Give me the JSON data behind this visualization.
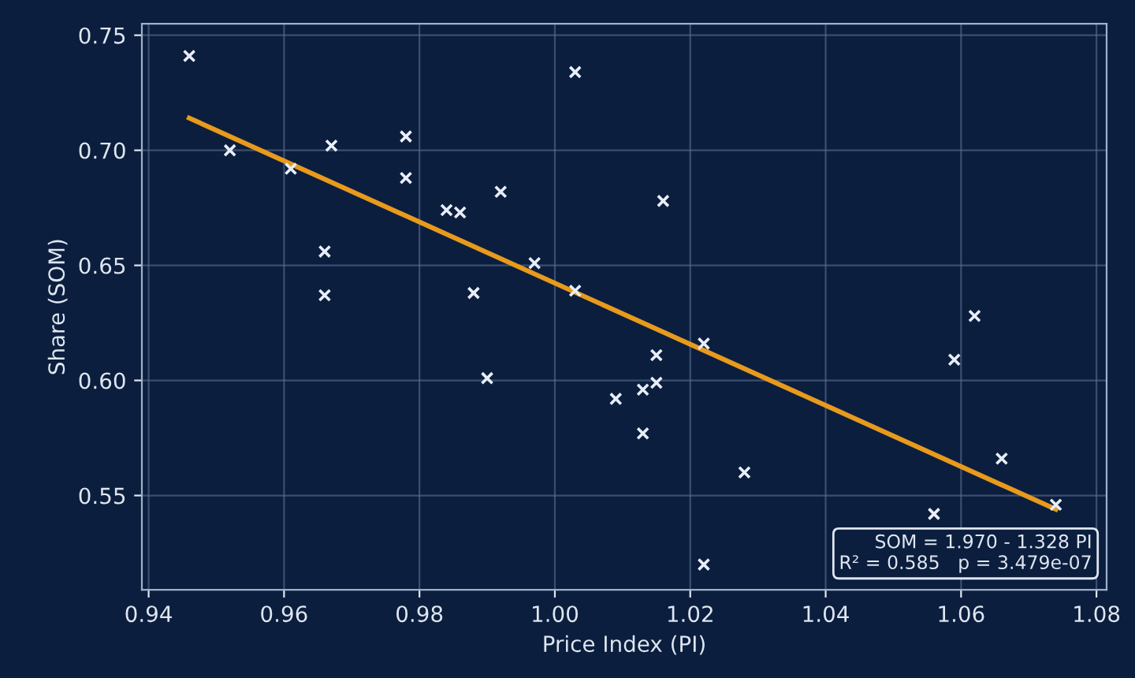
{
  "chart_data": {
    "type": "scatter",
    "xlabel": "Price Index (PI)",
    "ylabel": "Share (SOM)",
    "xlim": [
      0.939,
      1.0815
    ],
    "ylim": [
      0.509,
      0.755
    ],
    "xticks": [
      {
        "value": 0.94,
        "label": "0.94"
      },
      {
        "value": 0.96,
        "label": "0.96"
      },
      {
        "value": 0.98,
        "label": "0.98"
      },
      {
        "value": 1.0,
        "label": "1.00"
      },
      {
        "value": 1.02,
        "label": "1.02"
      },
      {
        "value": 1.04,
        "label": "1.04"
      },
      {
        "value": 1.06,
        "label": "1.06"
      },
      {
        "value": 1.08,
        "label": "1.08"
      }
    ],
    "yticks": [
      {
        "value": 0.55,
        "label": "0.55"
      },
      {
        "value": 0.6,
        "label": "0.60"
      },
      {
        "value": 0.65,
        "label": "0.65"
      },
      {
        "value": 0.7,
        "label": "0.70"
      },
      {
        "value": 0.75,
        "label": "0.75"
      }
    ],
    "grid": true,
    "series": [
      {
        "marker": "cross",
        "color": "#e8eef8",
        "x": [
          0.946,
          0.952,
          0.961,
          0.967,
          0.966,
          0.966,
          0.978,
          0.978,
          0.984,
          0.986,
          0.992,
          0.988,
          0.99,
          0.997,
          1.003,
          1.003,
          1.016,
          1.009,
          1.015,
          1.013,
          1.015,
          1.013,
          1.022,
          1.022,
          1.028,
          1.059,
          1.062,
          1.066,
          1.074,
          1.056
        ],
        "values": [
          0.741,
          0.7,
          0.692,
          0.702,
          0.656,
          0.637,
          0.706,
          0.688,
          0.674,
          0.673,
          0.682,
          0.638,
          0.601,
          0.651,
          0.734,
          0.639,
          0.678,
          0.592,
          0.611,
          0.596,
          0.599,
          0.577,
          0.616,
          0.52,
          0.56,
          0.609,
          0.628,
          0.566,
          0.546,
          0.542
        ]
      },
      {
        "type": "line",
        "color": "#e89a1c",
        "x": [
          0.946,
          1.074
        ],
        "values": [
          0.714,
          0.544
        ]
      }
    ],
    "annotations": [
      "SOM = 1.970 - 1.328 PI\nR² = 0.585   p = 3.479e-07"
    ]
  }
}
